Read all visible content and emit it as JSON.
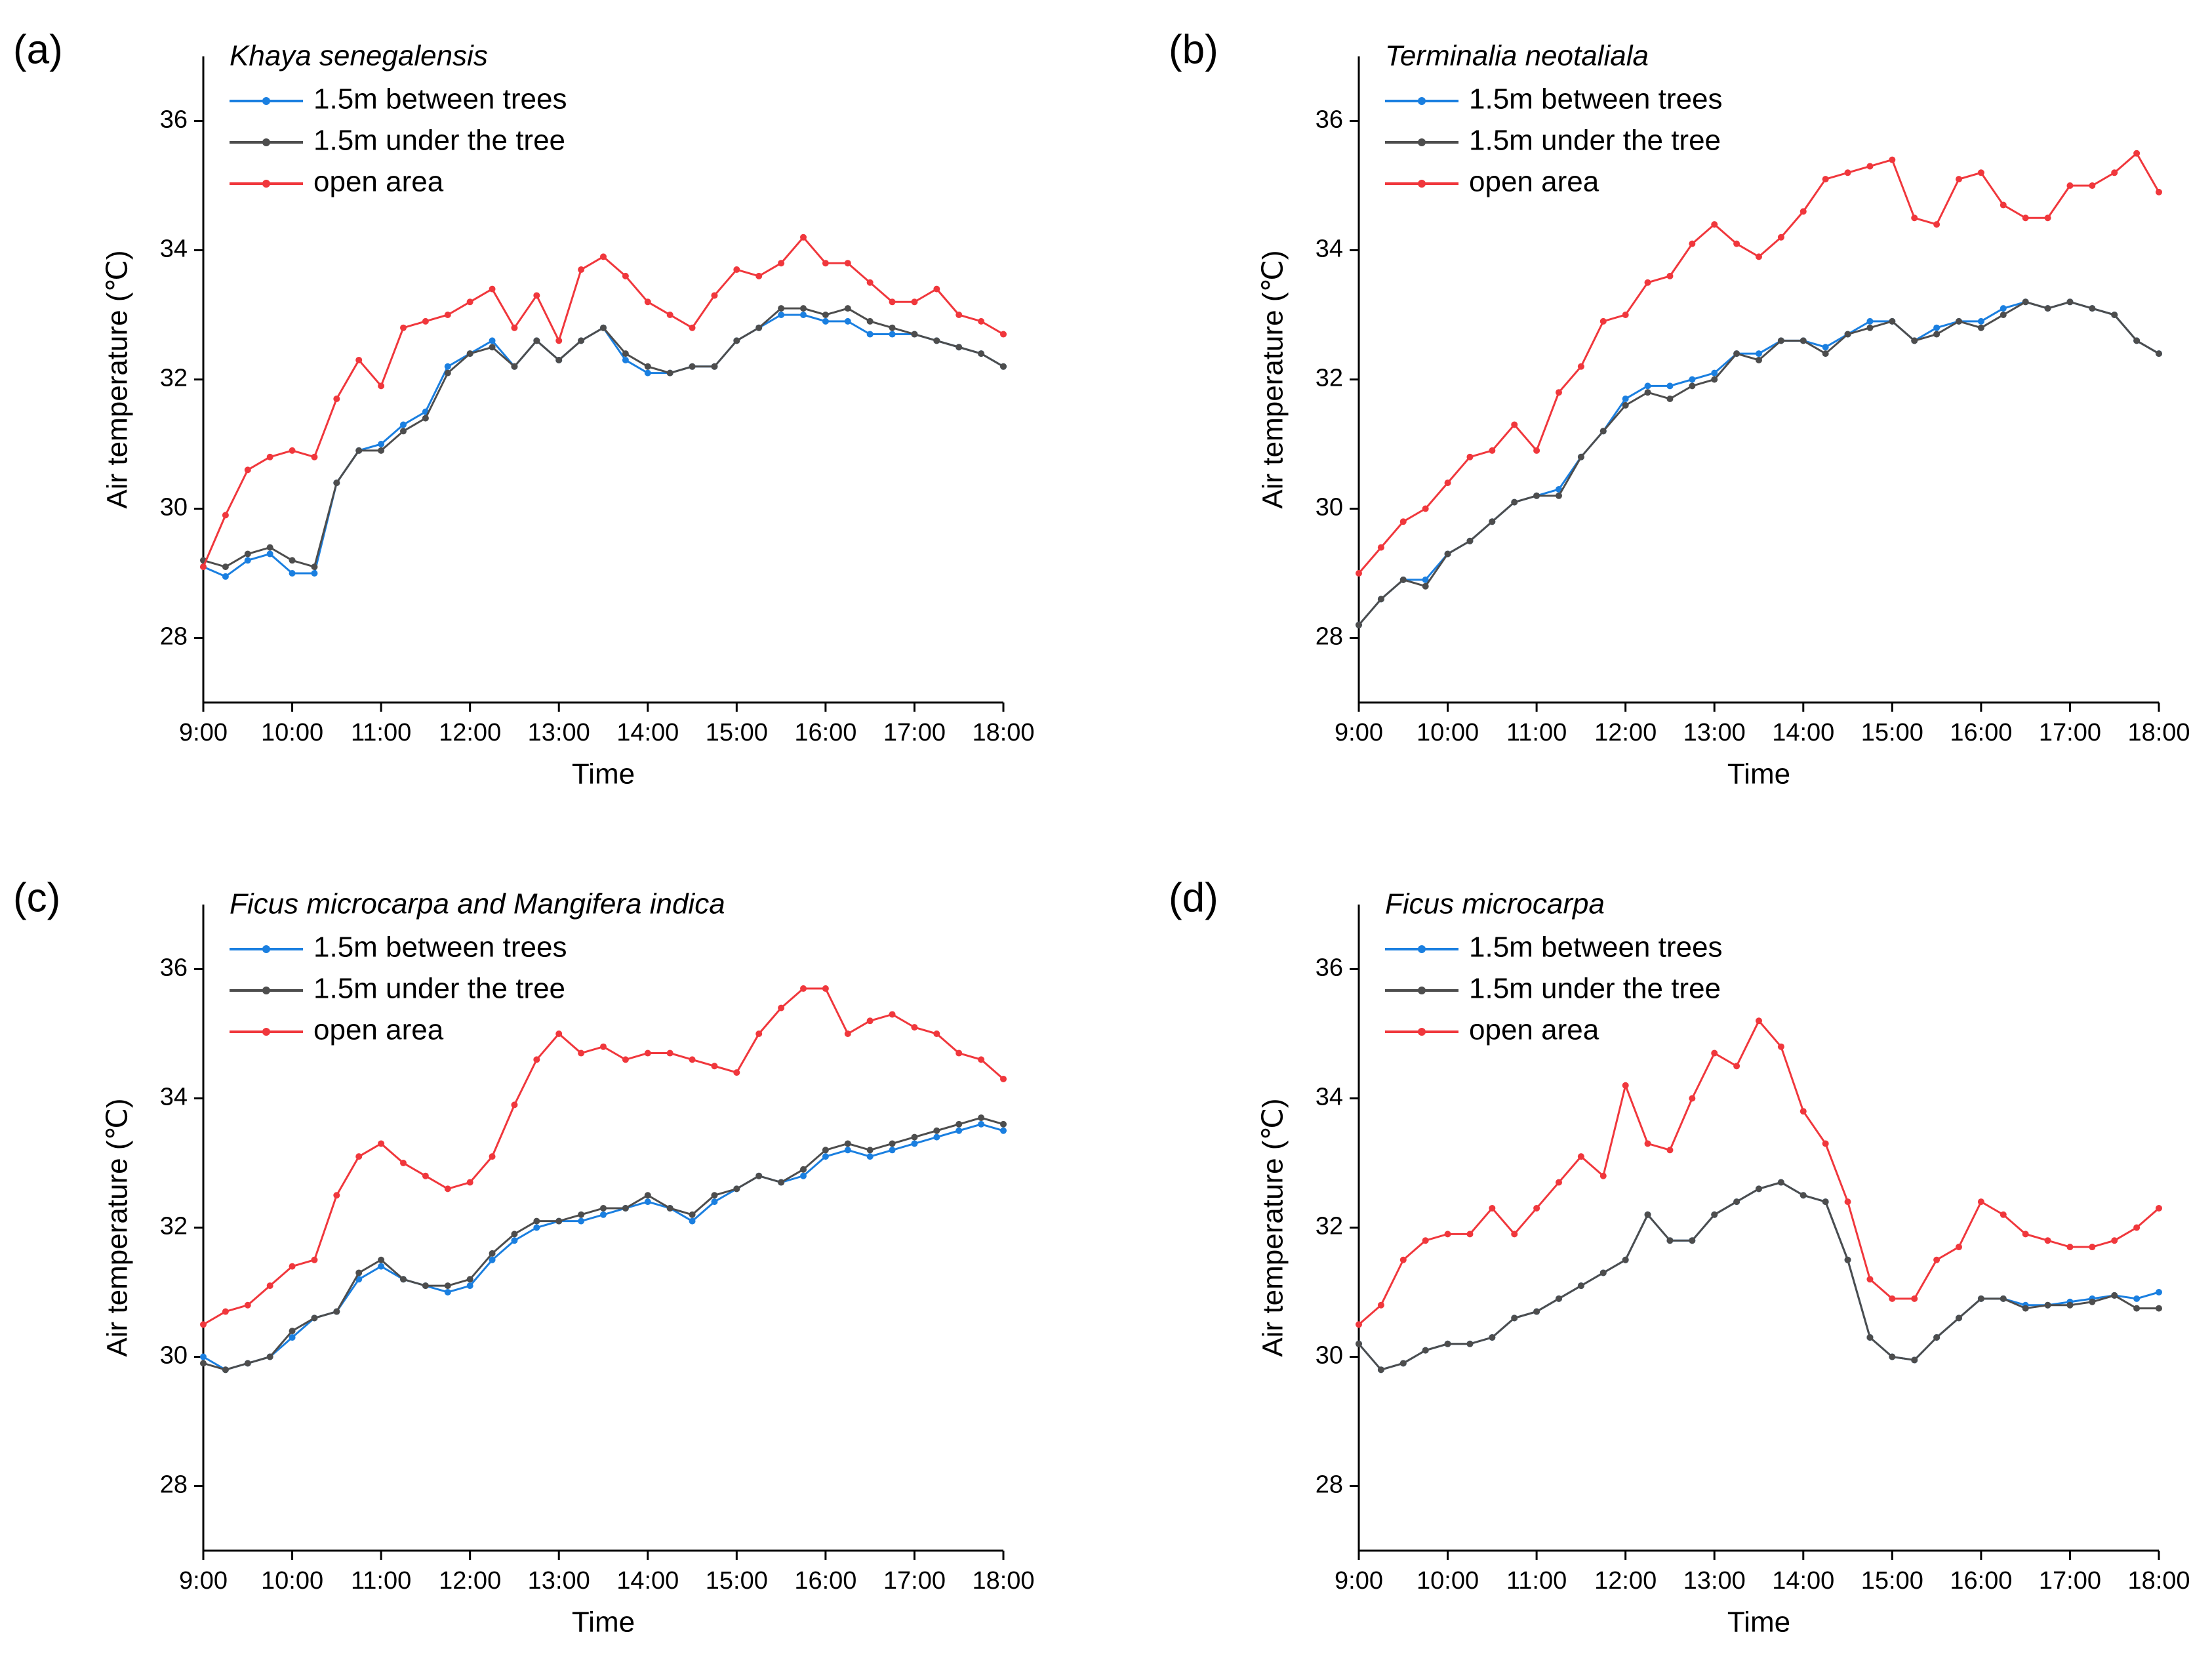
{
  "chart_data": [
    {
      "type": "line",
      "panel_label": "(a)",
      "title": "Khaya senegalensis",
      "xlabel": "Time",
      "ylabel": "Air temperature (℃)",
      "legend": "upper left",
      "x": [
        9,
        9.25,
        9.5,
        9.75,
        10,
        10.25,
        10.5,
        10.75,
        11,
        11.25,
        11.5,
        11.75,
        12,
        12.25,
        12.5,
        12.75,
        13,
        13.25,
        13.5,
        13.75,
        14,
        14.25,
        14.5,
        14.75,
        15,
        15.25,
        15.5,
        15.75,
        16,
        16.25,
        16.5,
        16.75,
        17,
        17.25,
        17.5,
        17.75,
        18
      ],
      "xlim": [
        9,
        18
      ],
      "xticks": [
        {
          "value": 9,
          "label": "9:00"
        },
        {
          "value": 10,
          "label": "10:00"
        },
        {
          "value": 11,
          "label": "11:00"
        },
        {
          "value": 12,
          "label": "12:00"
        },
        {
          "value": 13,
          "label": "13:00"
        },
        {
          "value": 14,
          "label": "14:00"
        },
        {
          "value": 15,
          "label": "15:00"
        },
        {
          "value": 16,
          "label": "16:00"
        },
        {
          "value": 17,
          "label": "17:00"
        },
        {
          "value": 18,
          "label": "18:00"
        }
      ],
      "ylim": [
        27,
        37
      ],
      "yticks": [
        28,
        30,
        32,
        34,
        36
      ],
      "series": [
        {
          "name": "1.5m between trees",
          "color": "#1a7fe0",
          "values": [
            29.1,
            28.95,
            29.2,
            29.3,
            29.0,
            29.0,
            30.4,
            30.9,
            31.0,
            31.3,
            31.5,
            32.2,
            32.4,
            32.6,
            32.2,
            32.6,
            32.3,
            32.6,
            32.8,
            32.3,
            32.1,
            32.1,
            32.2,
            32.2,
            32.6,
            32.8,
            33.0,
            33.0,
            32.9,
            32.9,
            32.7,
            32.7,
            32.7,
            32.6,
            32.5,
            32.4,
            32.2
          ]
        },
        {
          "name": "1.5m under the tree",
          "color": "#4d4d4d",
          "values": [
            29.2,
            29.1,
            29.3,
            29.4,
            29.2,
            29.1,
            30.4,
            30.9,
            30.9,
            31.2,
            31.4,
            32.1,
            32.4,
            32.5,
            32.2,
            32.6,
            32.3,
            32.6,
            32.8,
            32.4,
            32.2,
            32.1,
            32.2,
            32.2,
            32.6,
            32.8,
            33.1,
            33.1,
            33.0,
            33.1,
            32.9,
            32.8,
            32.7,
            32.6,
            32.5,
            32.4,
            32.2
          ]
        },
        {
          "name": "open area",
          "color": "#f0373c",
          "values": [
            29.1,
            29.9,
            30.6,
            30.8,
            30.9,
            30.8,
            31.7,
            32.3,
            31.9,
            32.8,
            32.9,
            33.0,
            33.2,
            33.4,
            32.8,
            33.3,
            32.6,
            33.7,
            33.9,
            33.6,
            33.2,
            33.0,
            32.8,
            33.3,
            33.7,
            33.6,
            33.8,
            34.2,
            33.8,
            33.8,
            33.5,
            33.2,
            33.2,
            33.4,
            33.0,
            32.9,
            32.7
          ]
        }
      ]
    },
    {
      "type": "line",
      "panel_label": "(b)",
      "title": "Terminalia neotaliala",
      "xlabel": "Time",
      "ylabel": "Air temperature (℃)",
      "legend": "upper left",
      "x": [
        9,
        9.25,
        9.5,
        9.75,
        10,
        10.25,
        10.5,
        10.75,
        11,
        11.25,
        11.5,
        11.75,
        12,
        12.25,
        12.5,
        12.75,
        13,
        13.25,
        13.5,
        13.75,
        14,
        14.25,
        14.5,
        14.75,
        15,
        15.25,
        15.5,
        15.75,
        16,
        16.25,
        16.5,
        16.75,
        17,
        17.25,
        17.5,
        17.75,
        18
      ],
      "xlim": [
        9,
        18
      ],
      "xticks": [
        {
          "value": 9,
          "label": "9:00"
        },
        {
          "value": 10,
          "label": "10:00"
        },
        {
          "value": 11,
          "label": "11:00"
        },
        {
          "value": 12,
          "label": "12:00"
        },
        {
          "value": 13,
          "label": "13:00"
        },
        {
          "value": 14,
          "label": "14:00"
        },
        {
          "value": 15,
          "label": "15:00"
        },
        {
          "value": 16,
          "label": "16:00"
        },
        {
          "value": 17,
          "label": "17:00"
        },
        {
          "value": 18,
          "label": "18:00"
        }
      ],
      "ylim": [
        27,
        37
      ],
      "yticks": [
        28,
        30,
        32,
        34,
        36
      ],
      "series": [
        {
          "name": "1.5m between trees",
          "color": "#1a7fe0",
          "values": [
            28.2,
            28.6,
            28.9,
            28.9,
            29.3,
            29.5,
            29.8,
            30.1,
            30.2,
            30.3,
            30.8,
            31.2,
            31.7,
            31.9,
            31.9,
            32.0,
            32.1,
            32.4,
            32.4,
            32.6,
            32.6,
            32.5,
            32.7,
            32.9,
            32.9,
            32.6,
            32.8,
            32.9,
            32.9,
            33.1,
            33.2,
            33.1,
            33.2,
            33.1,
            33.0,
            32.6,
            32.4
          ]
        },
        {
          "name": "1.5m under the tree",
          "color": "#4d4d4d",
          "values": [
            28.2,
            28.6,
            28.9,
            28.8,
            29.3,
            29.5,
            29.8,
            30.1,
            30.2,
            30.2,
            30.8,
            31.2,
            31.6,
            31.8,
            31.7,
            31.9,
            32.0,
            32.4,
            32.3,
            32.6,
            32.6,
            32.4,
            32.7,
            32.8,
            32.9,
            32.6,
            32.7,
            32.9,
            32.8,
            33.0,
            33.2,
            33.1,
            33.2,
            33.1,
            33.0,
            32.6,
            32.4
          ]
        },
        {
          "name": "open area",
          "color": "#f0373c",
          "values": [
            29.0,
            29.4,
            29.8,
            30.0,
            30.4,
            30.8,
            30.9,
            31.3,
            30.9,
            31.8,
            32.2,
            32.9,
            33.0,
            33.5,
            33.6,
            34.1,
            34.4,
            34.1,
            33.9,
            34.2,
            34.6,
            35.1,
            35.2,
            35.3,
            35.4,
            34.5,
            34.4,
            35.1,
            35.2,
            34.7,
            34.5,
            34.5,
            35.0,
            35.0,
            35.2,
            35.5,
            34.9
          ]
        }
      ]
    },
    {
      "type": "line",
      "panel_label": "(c)",
      "title": "Ficus microcarpa and Mangifera indica",
      "xlabel": "Time",
      "ylabel": "Air temperature (℃)",
      "legend": "upper left",
      "x": [
        9,
        9.25,
        9.5,
        9.75,
        10,
        10.25,
        10.5,
        10.75,
        11,
        11.25,
        11.5,
        11.75,
        12,
        12.25,
        12.5,
        12.75,
        13,
        13.25,
        13.5,
        13.75,
        14,
        14.25,
        14.5,
        14.75,
        15,
        15.25,
        15.5,
        15.75,
        16,
        16.25,
        16.5,
        16.75,
        17,
        17.25,
        17.5,
        17.75,
        18
      ],
      "xlim": [
        9,
        18
      ],
      "xticks": [
        {
          "value": 9,
          "label": "9:00"
        },
        {
          "value": 10,
          "label": "10:00"
        },
        {
          "value": 11,
          "label": "11:00"
        },
        {
          "value": 12,
          "label": "12:00"
        },
        {
          "value": 13,
          "label": "13:00"
        },
        {
          "value": 14,
          "label": "14:00"
        },
        {
          "value": 15,
          "label": "15:00"
        },
        {
          "value": 16,
          "label": "16:00"
        },
        {
          "value": 17,
          "label": "17:00"
        },
        {
          "value": 18,
          "label": "18:00"
        }
      ],
      "ylim": [
        27,
        37
      ],
      "yticks": [
        28,
        30,
        32,
        34,
        36
      ],
      "series": [
        {
          "name": "1.5m between trees",
          "color": "#1a7fe0",
          "values": [
            30.0,
            29.8,
            29.9,
            30.0,
            30.3,
            30.6,
            30.7,
            31.2,
            31.4,
            31.2,
            31.1,
            31.0,
            31.1,
            31.5,
            31.8,
            32.0,
            32.1,
            32.1,
            32.2,
            32.3,
            32.4,
            32.3,
            32.1,
            32.4,
            32.6,
            32.8,
            32.7,
            32.8,
            33.1,
            33.2,
            33.1,
            33.2,
            33.3,
            33.4,
            33.5,
            33.6,
            33.5
          ]
        },
        {
          "name": "1.5m under the tree",
          "color": "#4d4d4d",
          "values": [
            29.9,
            29.8,
            29.9,
            30.0,
            30.4,
            30.6,
            30.7,
            31.3,
            31.5,
            31.2,
            31.1,
            31.1,
            31.2,
            31.6,
            31.9,
            32.1,
            32.1,
            32.2,
            32.3,
            32.3,
            32.5,
            32.3,
            32.2,
            32.5,
            32.6,
            32.8,
            32.7,
            32.9,
            33.2,
            33.3,
            33.2,
            33.3,
            33.4,
            33.5,
            33.6,
            33.7,
            33.6
          ]
        },
        {
          "name": "open area",
          "color": "#f0373c",
          "values": [
            30.5,
            30.7,
            30.8,
            31.1,
            31.4,
            31.5,
            32.5,
            33.1,
            33.3,
            33.0,
            32.8,
            32.6,
            32.7,
            33.1,
            33.9,
            34.6,
            35.0,
            34.7,
            34.8,
            34.6,
            34.7,
            34.7,
            34.6,
            34.5,
            34.4,
            35.0,
            35.4,
            35.7,
            35.7,
            35.0,
            35.2,
            35.3,
            35.1,
            35.0,
            34.7,
            34.6,
            34.3
          ]
        }
      ]
    },
    {
      "type": "line",
      "panel_label": "(d)",
      "title": "Ficus microcarpa",
      "xlabel": "Time",
      "ylabel": "Air temperature (℃)",
      "legend": "upper left",
      "x": [
        9,
        9.25,
        9.5,
        9.75,
        10,
        10.25,
        10.5,
        10.75,
        11,
        11.25,
        11.5,
        11.75,
        12,
        12.25,
        12.5,
        12.75,
        13,
        13.25,
        13.5,
        13.75,
        14,
        14.25,
        14.5,
        14.75,
        15,
        15.25,
        15.5,
        15.75,
        16,
        16.25,
        16.5,
        16.75,
        17,
        17.25,
        17.5,
        17.75,
        18
      ],
      "xlim": [
        9,
        18
      ],
      "xticks": [
        {
          "value": 9,
          "label": "9:00"
        },
        {
          "value": 10,
          "label": "10:00"
        },
        {
          "value": 11,
          "label": "11:00"
        },
        {
          "value": 12,
          "label": "12:00"
        },
        {
          "value": 13,
          "label": "13:00"
        },
        {
          "value": 14,
          "label": "14:00"
        },
        {
          "value": 15,
          "label": "15:00"
        },
        {
          "value": 16,
          "label": "16:00"
        },
        {
          "value": 17,
          "label": "17:00"
        },
        {
          "value": 18,
          "label": "18:00"
        }
      ],
      "ylim": [
        27,
        37
      ],
      "yticks": [
        28,
        30,
        32,
        34,
        36
      ],
      "series": [
        {
          "name": "1.5m between trees",
          "color": "#1a7fe0",
          "values": [
            30.2,
            29.8,
            29.9,
            30.1,
            30.2,
            30.2,
            30.3,
            30.6,
            30.7,
            30.9,
            31.1,
            31.3,
            31.5,
            32.2,
            31.8,
            31.8,
            32.2,
            32.4,
            32.6,
            32.7,
            32.5,
            32.4,
            31.5,
            30.3,
            30.0,
            29.95,
            30.3,
            30.6,
            30.9,
            30.9,
            30.8,
            30.8,
            30.85,
            30.9,
            30.95,
            30.9,
            31.0
          ]
        },
        {
          "name": "1.5m under the tree",
          "color": "#4d4d4d",
          "values": [
            30.2,
            29.8,
            29.9,
            30.1,
            30.2,
            30.2,
            30.3,
            30.6,
            30.7,
            30.9,
            31.1,
            31.3,
            31.5,
            32.2,
            31.8,
            31.8,
            32.2,
            32.4,
            32.6,
            32.7,
            32.5,
            32.4,
            31.5,
            30.3,
            30.0,
            29.95,
            30.3,
            30.6,
            30.9,
            30.9,
            30.75,
            30.8,
            30.8,
            30.85,
            30.95,
            30.75,
            30.75
          ]
        },
        {
          "name": "open area",
          "color": "#f0373c",
          "values": [
            30.5,
            30.8,
            31.5,
            31.8,
            31.9,
            31.9,
            32.3,
            31.9,
            32.3,
            32.7,
            33.1,
            32.8,
            34.2,
            33.3,
            33.2,
            34.0,
            34.7,
            34.5,
            35.2,
            34.8,
            33.8,
            33.3,
            32.4,
            31.2,
            30.9,
            30.9,
            31.5,
            31.7,
            32.4,
            32.2,
            31.9,
            31.8,
            31.7,
            31.7,
            31.8,
            32.0,
            32.3
          ]
        }
      ]
    }
  ]
}
